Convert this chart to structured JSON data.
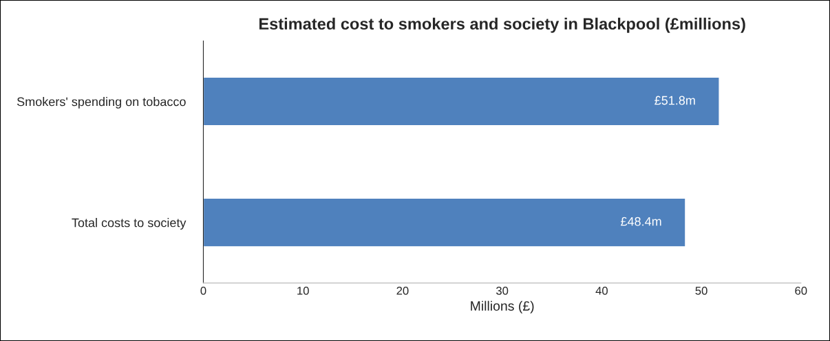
{
  "chart_data": {
    "type": "bar",
    "orientation": "horizontal",
    "title": "Estimated cost to smokers and society in Blackpool (£millions)",
    "categories": [
      "Smokers' spending on tobacco",
      "Total costs to society"
    ],
    "values": [
      51.8,
      48.4
    ],
    "value_labels": [
      "£51.8m",
      "£48.4m"
    ],
    "color": "#4f81bd",
    "xlabel": "Millions (£)",
    "xlim": [
      0,
      60
    ],
    "xticks": [
      0,
      10,
      20,
      30,
      40,
      50,
      60
    ],
    "grid": false,
    "legend": false
  }
}
